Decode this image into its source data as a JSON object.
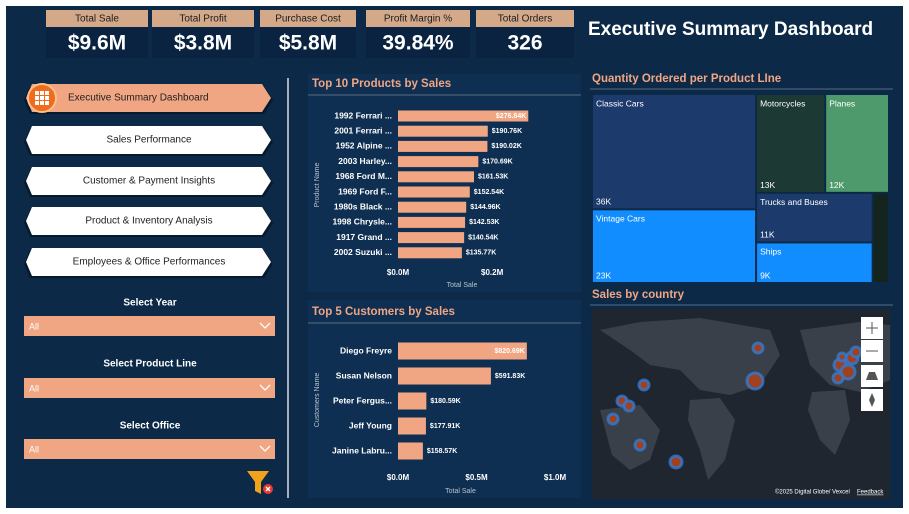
{
  "title": "Executive Summary Dashboard",
  "kpis": [
    {
      "label": "Total Sale",
      "value": "$9.6M"
    },
    {
      "label": "Total Profit",
      "value": "$3.8M"
    },
    {
      "label": "Purchase Cost",
      "value": "$5.8M"
    },
    {
      "label": "Profit Margin %",
      "value": "39.84%"
    },
    {
      "label": "Total Orders",
      "value": "326"
    }
  ],
  "nav": [
    "Executive Summary Dashboard",
    "Sales Performance",
    "Customer & Payment Insights",
    "Product & Inventory Analysis",
    "Employees & Office Performances"
  ],
  "filters": [
    {
      "label": "Select Year",
      "value": "All"
    },
    {
      "label": "Select Product Line",
      "value": "All"
    },
    {
      "label": "Select Office",
      "value": "All"
    }
  ],
  "chart_data": [
    {
      "type": "bar",
      "title": "Top 10 Products by Sales",
      "x_label": "Total Sale",
      "y_label": "Product Name",
      "color": "#f0a583",
      "categories": [
        "1992 Ferrari ...",
        "2001 Ferrari ...",
        "1952 Alpine ...",
        "2003 Harley...",
        "1968 Ford M...",
        "1969 Ford F...",
        "1980s Black ...",
        "1998 Chrysle...",
        "1917 Grand ...",
        "2002 Suzuki ..."
      ],
      "values": [
        276840,
        190760,
        190020,
        170690,
        161530,
        152540,
        144960,
        142530,
        140540,
        135770
      ],
      "value_labels": [
        "$276.84K",
        "$190.76K",
        "$190.02K",
        "$170.69K",
        "$161.53K",
        "$152.54K",
        "$144.96K",
        "$142.53K",
        "$140.54K",
        "$135.77K"
      ],
      "xlim": [
        0,
        340000
      ],
      "xticks": [
        {
          "value": 0,
          "label": "$0.0M"
        },
        {
          "value": 200000,
          "label": "$0.2M"
        }
      ]
    },
    {
      "type": "bar",
      "title": "Top 5 Customers by Sales",
      "x_label": "Total Sale",
      "y_label": "Customers Name",
      "color": "#f0a583",
      "categories": [
        "Diego Freyre",
        "Susan Nelson",
        "Peter Fergus...",
        "Jeff Young",
        "Janine Labru..."
      ],
      "values": [
        820690,
        591830,
        180590,
        177910,
        158570
      ],
      "value_labels": [
        "$820.69K",
        "$591.83K",
        "$180.59K",
        "$177.91K",
        "$158.57K"
      ],
      "xlim": [
        0,
        1000000
      ],
      "xticks": [
        {
          "value": 0,
          "label": "$0.0M"
        },
        {
          "value": 500000,
          "label": "$0.5M"
        },
        {
          "value": 1000000,
          "label": "$1.0M"
        }
      ]
    },
    {
      "type": "treemap",
      "title": "Quantity Ordered per Product LIne",
      "categories": [
        "Classic Cars",
        "Vintage Cars",
        "Motorcycles",
        "Planes",
        "Trucks and Buses",
        "Ships",
        null
      ],
      "values": [
        36000,
        23000,
        13000,
        12000,
        11000,
        9000,
        2800
      ],
      "value_labels": [
        "36K",
        "23K",
        "13K",
        "12K",
        "11K",
        "9K",
        null
      ],
      "colors": [
        "#1d3a6c",
        "#118dff",
        "#1c3a33",
        "#4f9a6c",
        "#1d3a6c",
        "#118dff",
        "#142520"
      ]
    }
  ],
  "map": {
    "title": "Sales by country",
    "attribution": "©2025 Digital Globe/ Vexcel",
    "feedback": "Feedback"
  }
}
